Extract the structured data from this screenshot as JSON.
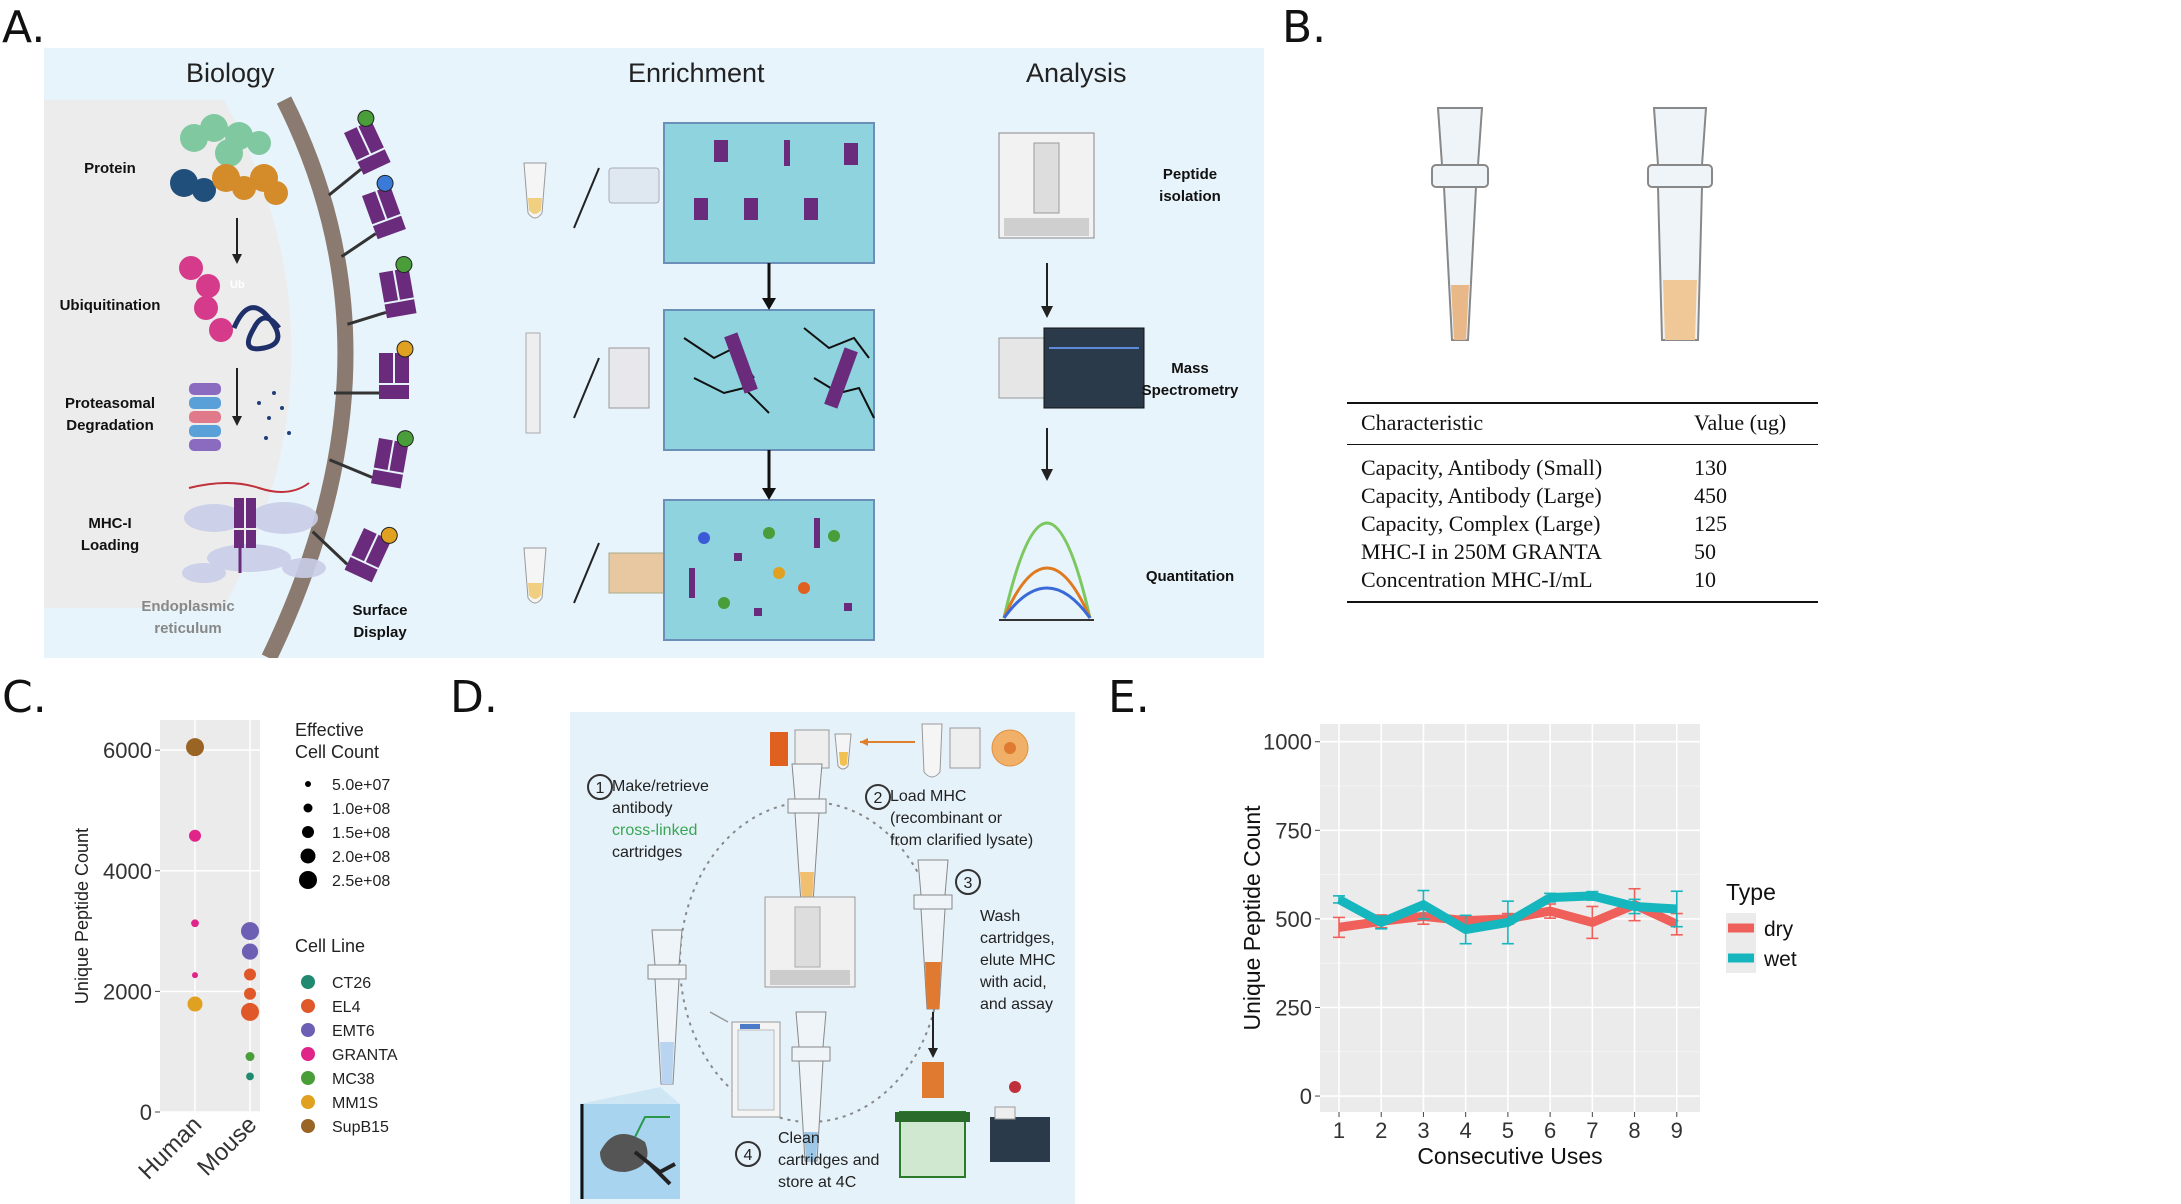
{
  "panels": {
    "a": {
      "letter": "A.",
      "sections": {
        "biology": "Biology",
        "enrichment": "Enrichment",
        "analysis": "Analysis"
      },
      "biology_steps": {
        "protein": "Protein",
        "ubiquitination": "Ubiquitination",
        "ub": "Ub",
        "degradation": [
          "Proteasomal",
          "Degradation"
        ],
        "loading": [
          "MHC-I",
          "Loading"
        ],
        "er": [
          "Endoplasmic",
          "reticulum"
        ],
        "surface": [
          "Surface",
          "Display"
        ]
      },
      "analysis_steps": {
        "isolation": [
          "Peptide",
          "isolation"
        ],
        "ms": [
          "Mass",
          "Spectrometry"
        ],
        "quant": "Quantitation"
      },
      "colors": {
        "background": "#e8f4fb",
        "cell": "#ececec",
        "membrane": "#8a7a70",
        "mhc": "#6a2b7d",
        "enrich_box": "#8fd3de"
      }
    },
    "b": {
      "letter": "B.",
      "table": {
        "headers": [
          "Characteristic",
          "Value (ug)"
        ],
        "rows": [
          [
            "Capacity, Antibody (Small)",
            "130"
          ],
          [
            "Capacity, Antibody (Large)",
            "450"
          ],
          [
            "Capacity, Complex (Large)",
            "125"
          ],
          [
            "MHC-I in 250M GRANTA",
            "50"
          ],
          [
            "Concentration MHC-I/mL",
            "10"
          ]
        ]
      }
    },
    "c": {
      "letter": "C."
    },
    "d": {
      "letter": "D.",
      "steps": [
        {
          "num": "1",
          "lines": [
            "Make/retrieve",
            "antibody"
          ],
          "highlight": "cross-linked",
          "tail": "cartridges"
        },
        {
          "num": "2",
          "lines": [
            "Load MHC",
            "(recombinant or",
            "from clarified lysate)"
          ]
        },
        {
          "num": "3",
          "lines": [
            "Wash",
            "cartridges,",
            "elute MHC",
            "with acid,",
            "and assay"
          ]
        },
        {
          "num": "4",
          "lines": [
            "Clean",
            "cartridges and",
            "store at 4C"
          ]
        }
      ],
      "colors": {
        "background": "#e6f2fa",
        "highlight": "#3aa655"
      }
    },
    "e": {
      "letter": "E."
    }
  },
  "chart_data": [
    {
      "type": "scatter",
      "panel": "C",
      "ylabel": "Unique Peptide Count",
      "xlabel": "",
      "categories": [
        "Human",
        "Mouse"
      ],
      "ylim": [
        0,
        6500
      ],
      "yticks": [
        0,
        2000,
        4000,
        6000
      ],
      "grid": true,
      "legend_position": "right",
      "size_legend": {
        "title": [
          "Effective",
          "Cell Count"
        ],
        "entries": [
          "5.0e+07",
          "1.0e+08",
          "1.5e+08",
          "2.0e+08",
          "2.5e+08"
        ]
      },
      "color_legend": {
        "title": "Cell Line",
        "entries": [
          {
            "name": "CT26",
            "color": "#1f8a70"
          },
          {
            "name": "EL4",
            "color": "#e0582a"
          },
          {
            "name": "EMT6",
            "color": "#6d5fb3"
          },
          {
            "name": "GRANTA",
            "color": "#e0248a"
          },
          {
            "name": "MC38",
            "color": "#4a9e3a"
          },
          {
            "name": "MM1S",
            "color": "#e0a020"
          },
          {
            "name": "SupB15",
            "color": "#9a6424"
          }
        ]
      },
      "points": [
        {
          "category": "Human",
          "line": "SupB15",
          "y": 6050,
          "size": 250000000.0
        },
        {
          "category": "Human",
          "line": "GRANTA",
          "y": 4580,
          "size": 150000000.0
        },
        {
          "category": "Human",
          "line": "GRANTA",
          "y": 3130,
          "size": 80000000.0
        },
        {
          "category": "Human",
          "line": "GRANTA",
          "y": 2270,
          "size": 50000000.0
        },
        {
          "category": "Human",
          "line": "MM1S",
          "y": 1790,
          "size": 200000000.0
        },
        {
          "category": "Mouse",
          "line": "EMT6",
          "y": 3000,
          "size": 250000000.0
        },
        {
          "category": "Mouse",
          "line": "EMT6",
          "y": 2660,
          "size": 220000000.0
        },
        {
          "category": "Mouse",
          "line": "EL4",
          "y": 2280,
          "size": 150000000.0
        },
        {
          "category": "Mouse",
          "line": "EL4",
          "y": 1960,
          "size": 150000000.0
        },
        {
          "category": "Mouse",
          "line": "EL4",
          "y": 1660,
          "size": 250000000.0
        },
        {
          "category": "Mouse",
          "line": "MC38",
          "y": 920,
          "size": 100000000.0
        },
        {
          "category": "Mouse",
          "line": "CT26",
          "y": 590,
          "size": 80000000.0
        }
      ]
    },
    {
      "type": "line",
      "panel": "E",
      "xlabel": "Consecutive Uses",
      "ylabel": "Unique Peptide Count",
      "x": [
        1,
        2,
        3,
        4,
        5,
        6,
        7,
        8,
        9
      ],
      "ylim": [
        0,
        1000
      ],
      "yticks": [
        0,
        250,
        500,
        750,
        1000
      ],
      "grid": true,
      "legend_title": "Type",
      "legend_position": "right",
      "series": [
        {
          "name": "dry",
          "color": "#f0605a",
          "values": [
            476,
            493,
            507,
            495,
            500,
            522,
            490,
            540,
            485
          ],
          "error": [
            28,
            18,
            22,
            12,
            15,
            20,
            45,
            45,
            30
          ]
        },
        {
          "name": "wet",
          "color": "#15b6bd",
          "values": [
            555,
            490,
            540,
            470,
            490,
            560,
            565,
            535,
            528
          ],
          "error": [
            10,
            18,
            40,
            40,
            60,
            12,
            12,
            20,
            50
          ]
        }
      ]
    }
  ]
}
